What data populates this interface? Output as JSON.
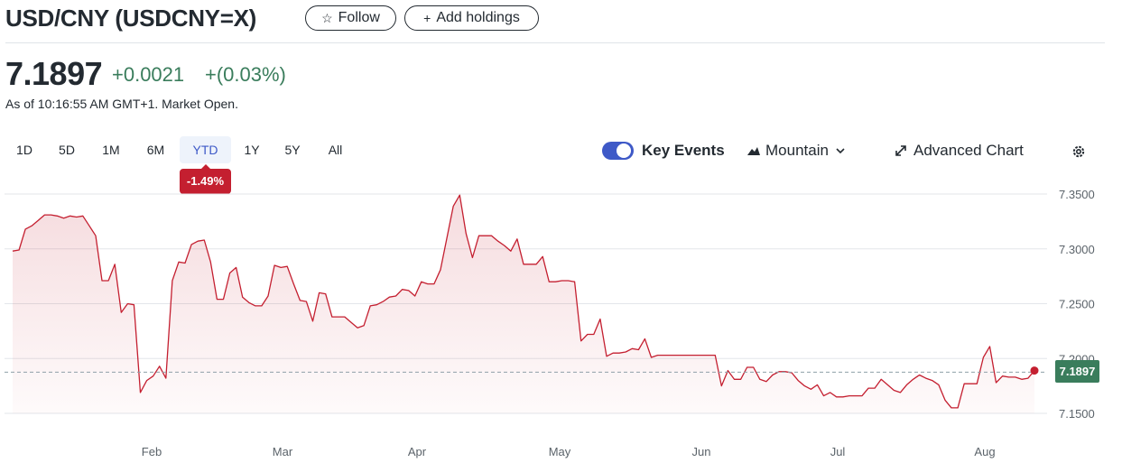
{
  "header": {
    "title": "USD/CNY (USDCNY=X)",
    "follow_label": "Follow",
    "add_holdings_label": "Add holdings",
    "follow_icon": "star-icon",
    "add_icon": "plus-icon"
  },
  "quote": {
    "price": "7.1897",
    "change": "+0.0021",
    "change_pct": "+(0.03%)",
    "as_of": "As of 10:16:55 AM GMT+1. Market Open.",
    "change_color": "#3a7d5c"
  },
  "ranges": [
    {
      "label": "1D",
      "active": false
    },
    {
      "label": "5D",
      "active": false
    },
    {
      "label": "1M",
      "active": false
    },
    {
      "label": "6M",
      "active": false
    },
    {
      "label": "YTD",
      "active": true
    },
    {
      "label": "1Y",
      "active": false
    },
    {
      "label": "5Y",
      "active": false
    },
    {
      "label": "All",
      "active": false
    }
  ],
  "ytd_change": "-1.49%",
  "controls": {
    "key_events_label": "Key Events",
    "key_events_on": true,
    "chart_type_label": "Mountain",
    "advanced_chart_label": "Advanced Chart",
    "settings_icon": "gear-icon"
  },
  "chart_data": {
    "type": "area",
    "title": "",
    "xlabel": "",
    "ylabel": "",
    "ylim": [
      7.14,
      7.36
    ],
    "y_ticks": [
      "7.3500",
      "7.3000",
      "7.2500",
      "7.2000",
      "7.1500"
    ],
    "x_ticks": [
      "Feb",
      "Mar",
      "Apr",
      "May",
      "Jun",
      "Jul",
      "Aug"
    ],
    "previous_close": 7.1876,
    "last_value": "7.1897",
    "line_color": "#c41f30",
    "grid": true,
    "series": [
      {
        "values": [
          7.298,
          7.299,
          7.318,
          7.321,
          7.326,
          7.331,
          7.331,
          7.33,
          7.328,
          7.33,
          7.329,
          7.33,
          7.321,
          7.312,
          7.271,
          7.271,
          7.286,
          7.242,
          7.25,
          7.249,
          7.169,
          7.18,
          7.184,
          7.193,
          7.182,
          7.271,
          7.288,
          7.287,
          7.304,
          7.307,
          7.308,
          7.288,
          7.254,
          7.254,
          7.278,
          7.283,
          7.256,
          7.251,
          7.248,
          7.248,
          7.257,
          7.285,
          7.283,
          7.284,
          7.268,
          7.253,
          7.252,
          7.234,
          7.26,
          7.259,
          7.238,
          7.238,
          7.238,
          7.233,
          7.228,
          7.23,
          7.248,
          7.249,
          7.252,
          7.256,
          7.257,
          7.263,
          7.262,
          7.257,
          7.27,
          7.268,
          7.268,
          7.281,
          7.31,
          7.339,
          7.349,
          7.314,
          7.292,
          7.312,
          7.312,
          7.312,
          7.307,
          7.303,
          7.298,
          7.309,
          7.286,
          7.286,
          7.286,
          7.293,
          7.27,
          7.27,
          7.271,
          7.271,
          7.27,
          7.216,
          7.222,
          7.222,
          7.236,
          7.202,
          7.205,
          7.205,
          7.206,
          7.209,
          7.208,
          7.218,
          7.201,
          7.203,
          7.203,
          7.203,
          7.203,
          7.203,
          7.203,
          7.203,
          7.203,
          7.203,
          7.203,
          7.175,
          7.189,
          7.181,
          7.181,
          7.192,
          7.192,
          7.181,
          7.179,
          7.185,
          7.188,
          7.188,
          7.187,
          7.18,
          7.175,
          7.172,
          7.176,
          7.166,
          7.169,
          7.165,
          7.165,
          7.166,
          7.166,
          7.166,
          7.173,
          7.173,
          7.181,
          7.176,
          7.171,
          7.169,
          7.176,
          7.181,
          7.185,
          7.182,
          7.18,
          7.176,
          7.162,
          7.155,
          7.155,
          7.177,
          7.177,
          7.177,
          7.201,
          7.211,
          7.178,
          7.184,
          7.183,
          7.183,
          7.181,
          7.182,
          7.189
        ]
      }
    ]
  }
}
